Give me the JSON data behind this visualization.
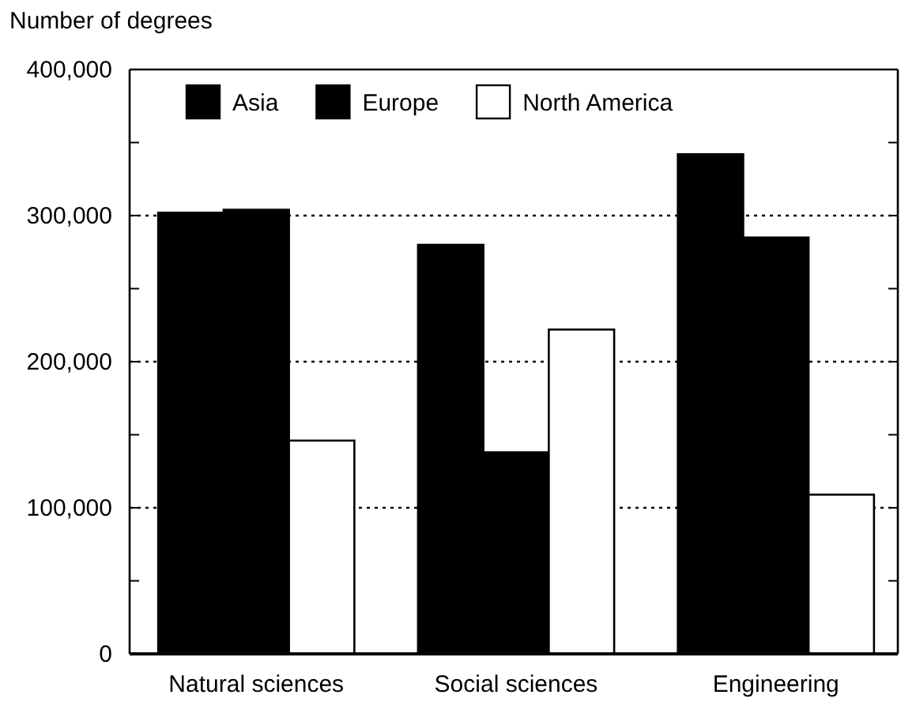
{
  "chart_data": {
    "type": "bar",
    "ylabel": "Number of degrees",
    "categories": [
      "Natural sciences",
      "Social sciences",
      "Engineering"
    ],
    "series": [
      {
        "name": "Asia",
        "color": "#000000",
        "values": [
          302000,
          280000,
          342000
        ]
      },
      {
        "name": "Europe",
        "color": "#000000",
        "values": [
          304000,
          138000,
          285000
        ]
      },
      {
        "name": "North America",
        "color": "#ffffff",
        "values": [
          146000,
          222000,
          109000
        ]
      }
    ],
    "ylim": [
      0,
      400000
    ],
    "yticks": [
      0,
      {
        "value": 50000,
        "label": null
      },
      {
        "value": 100000,
        "label": "100,000"
      },
      {
        "value": 150000,
        "label": null
      },
      {
        "value": 200000,
        "label": "200,000"
      },
      {
        "value": 250000,
        "label": null
      },
      {
        "value": 300000,
        "label": "300,000"
      },
      {
        "value": 350000,
        "label": null
      },
      {
        "value": 400000,
        "label": "400,000"
      }
    ],
    "grid": "y",
    "legend": "top left"
  }
}
